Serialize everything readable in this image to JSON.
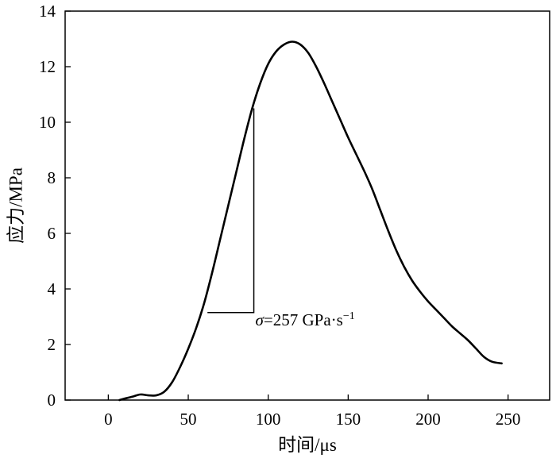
{
  "chart_data": {
    "type": "line",
    "xlabel": "时间/μs",
    "ylabel": "应力/MPa",
    "xlim": [
      -27,
      276
    ],
    "ylim": [
      0,
      14
    ],
    "xticks": [
      0,
      50,
      100,
      150,
      200,
      250
    ],
    "yticks": [
      0,
      2,
      4,
      6,
      8,
      10,
      12,
      14
    ],
    "grid": false,
    "series": [
      {
        "x": [
          7,
          10,
          15,
          20,
          25,
          30,
          35,
          40,
          45,
          50,
          55,
          60,
          65,
          70,
          75,
          80,
          85,
          90,
          95,
          100,
          105,
          110,
          115,
          120,
          125,
          130,
          135,
          140,
          145,
          150,
          155,
          160,
          165,
          170,
          175,
          180,
          185,
          190,
          195,
          200,
          205,
          210,
          215,
          220,
          225,
          230,
          235,
          240,
          246
        ],
        "y": [
          0.0,
          0.05,
          0.12,
          0.2,
          0.17,
          0.17,
          0.3,
          0.65,
          1.2,
          1.85,
          2.6,
          3.5,
          4.6,
          5.8,
          7.0,
          8.2,
          9.4,
          10.5,
          11.4,
          12.1,
          12.55,
          12.8,
          12.9,
          12.8,
          12.5,
          12.0,
          11.4,
          10.75,
          10.1,
          9.45,
          8.85,
          8.25,
          7.6,
          6.85,
          6.1,
          5.4,
          4.8,
          4.3,
          3.9,
          3.55,
          3.25,
          2.95,
          2.65,
          2.4,
          2.15,
          1.85,
          1.55,
          1.38,
          1.32
        ]
      }
    ],
    "annotation": {
      "text": "σ=257 GPa·s",
      "superscript": "−1",
      "triangle": {
        "x0": 62,
        "x1": 91,
        "y0": 3.15,
        "y1": 10.5
      }
    }
  }
}
